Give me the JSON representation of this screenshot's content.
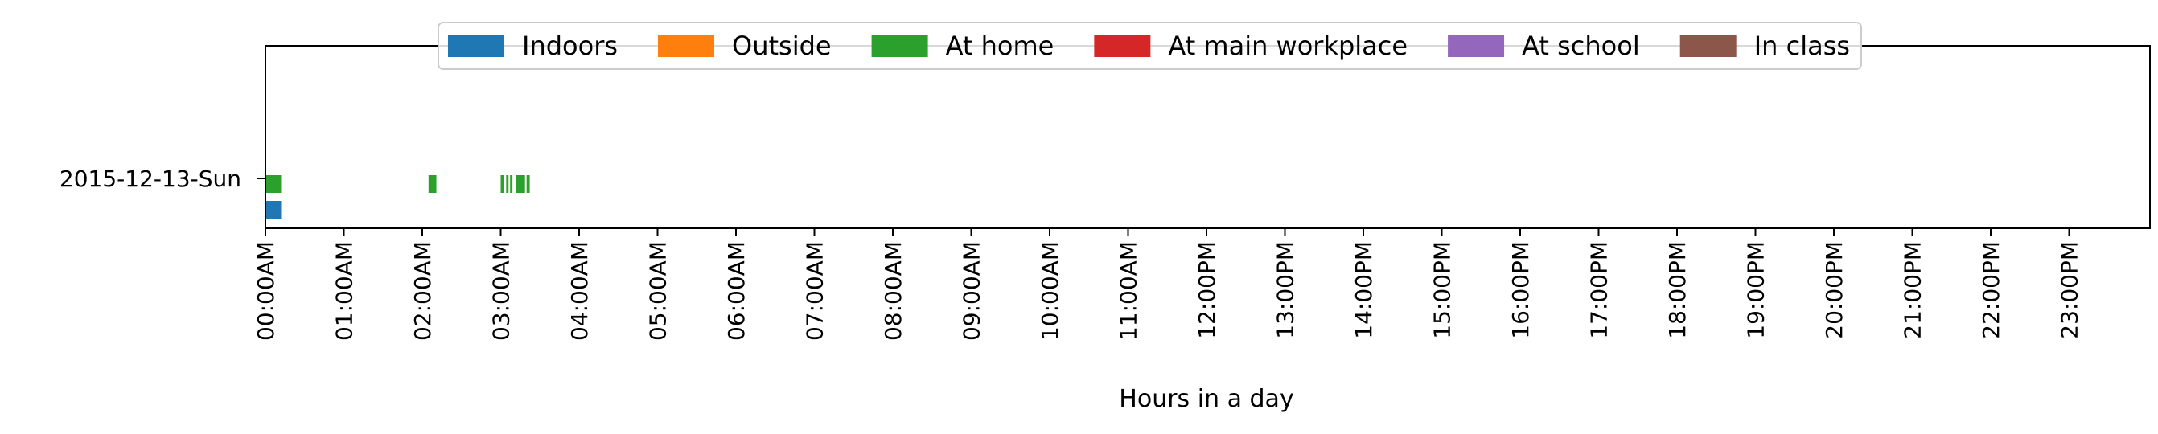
{
  "chart_data": {
    "type": "broken-bar",
    "xlabel": "Hours in a day",
    "ylabel": "",
    "xlim": [
      0,
      24
    ],
    "categories": [
      "2015-12-13-Sun"
    ],
    "x_ticks": [
      {
        "value": 0,
        "label": "00:00AM"
      },
      {
        "value": 1,
        "label": "01:00AM"
      },
      {
        "value": 2,
        "label": "02:00AM"
      },
      {
        "value": 3,
        "label": "03:00AM"
      },
      {
        "value": 4,
        "label": "04:00AM"
      },
      {
        "value": 5,
        "label": "05:00AM"
      },
      {
        "value": 6,
        "label": "06:00AM"
      },
      {
        "value": 7,
        "label": "07:00AM"
      },
      {
        "value": 8,
        "label": "08:00AM"
      },
      {
        "value": 9,
        "label": "09:00AM"
      },
      {
        "value": 10,
        "label": "10:00AM"
      },
      {
        "value": 11,
        "label": "11:00AM"
      },
      {
        "value": 12,
        "label": "12:00PM"
      },
      {
        "value": 13,
        "label": "13:00PM"
      },
      {
        "value": 14,
        "label": "14:00PM"
      },
      {
        "value": 15,
        "label": "15:00PM"
      },
      {
        "value": 16,
        "label": "16:00PM"
      },
      {
        "value": 17,
        "label": "17:00PM"
      },
      {
        "value": 18,
        "label": "18:00PM"
      },
      {
        "value": 19,
        "label": "19:00PM"
      },
      {
        "value": 20,
        "label": "20:00PM"
      },
      {
        "value": 21,
        "label": "21:00PM"
      },
      {
        "value": 22,
        "label": "22:00PM"
      },
      {
        "value": 23,
        "label": "23:00PM"
      }
    ],
    "legend": {
      "location": "top-center",
      "entries": [
        {
          "label": "Indoors",
          "color": "#1f77b4"
        },
        {
          "label": "Outside",
          "color": "#ff7f0e"
        },
        {
          "label": "At home",
          "color": "#2ca02c"
        },
        {
          "label": "At main workplace",
          "color": "#d62728"
        },
        {
          "label": "At school",
          "color": "#9467bd"
        },
        {
          "label": "In class",
          "color": "#8c564b"
        }
      ]
    },
    "series": [
      {
        "name": "At home",
        "color": "#2ca02c",
        "day": "2015-12-13-Sun",
        "intervals": [
          [
            0.0,
            0.2
          ],
          [
            2.08,
            2.18
          ],
          [
            3.0,
            3.04
          ],
          [
            3.07,
            3.1
          ],
          [
            3.12,
            3.15
          ],
          [
            3.19,
            3.31
          ],
          [
            3.33,
            3.37
          ]
        ]
      },
      {
        "name": "Indoors",
        "color": "#1f77b4",
        "day": "2015-12-13-Sun",
        "intervals": [
          [
            0.0,
            0.2
          ]
        ]
      }
    ]
  }
}
